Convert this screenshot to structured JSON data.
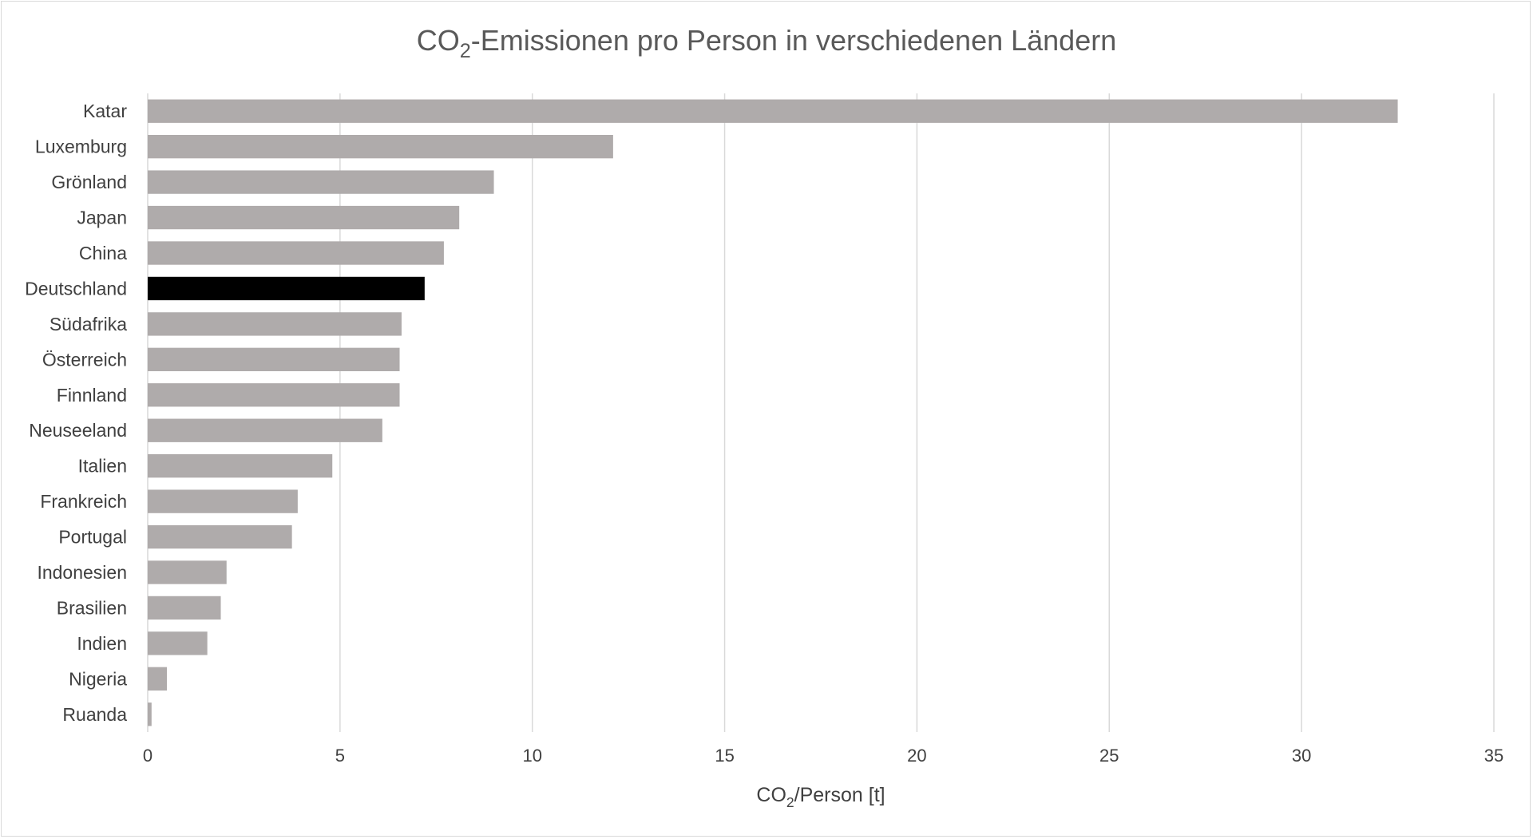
{
  "chart_data": {
    "type": "bar",
    "orientation": "horizontal",
    "title": {
      "before_sub": "CO",
      "sub": "2",
      "after_sub": "-Emissionen pro Person in verschiedenen Ländern"
    },
    "xlabel": {
      "before_sub": "CO",
      "sub": "2",
      "after_sub": "/Person [t]"
    },
    "ylabel": "",
    "xlim": [
      0,
      35
    ],
    "xticks": [
      "0",
      "5",
      "10",
      "15",
      "20",
      "25",
      "30",
      "35"
    ],
    "grid": "vertical",
    "legend": "none",
    "categories": [
      "Katar",
      "Luxemburg",
      "Grönland",
      "Japan",
      "China",
      "Deutschland",
      "Südafrika",
      "Österreich",
      "Finnland",
      "Neuseeland",
      "Italien",
      "Frankreich",
      "Portugal",
      "Indonesien",
      "Brasilien",
      "Indien",
      "Nigeria",
      "Ruanda"
    ],
    "values": [
      32.5,
      12.1,
      9.0,
      8.1,
      7.7,
      7.2,
      6.6,
      6.55,
      6.55,
      6.1,
      4.8,
      3.9,
      3.75,
      2.05,
      1.9,
      1.55,
      0.5,
      0.1
    ],
    "highlight_category": "Deutschland",
    "colors": {
      "bar": "#afabab",
      "highlight": "#000000",
      "grid": "#d9d9d9"
    }
  }
}
